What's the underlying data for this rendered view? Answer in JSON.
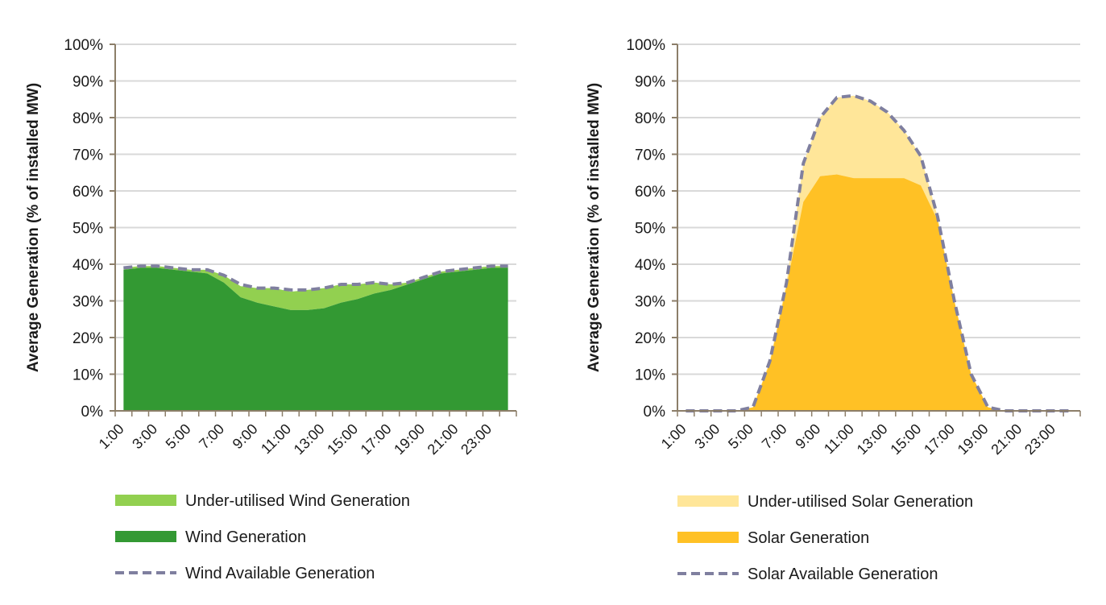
{
  "chart_data": [
    {
      "type": "area",
      "title": "",
      "xlabel": "",
      "ylabel": "Average Generation (% of installed MW)",
      "ylim": [
        0,
        100
      ],
      "ytick_labels": [
        "0%",
        "10%",
        "20%",
        "30%",
        "40%",
        "50%",
        "60%",
        "70%",
        "80%",
        "90%",
        "100%"
      ],
      "x": [
        "1:00",
        "2:00",
        "3:00",
        "4:00",
        "5:00",
        "6:00",
        "7:00",
        "8:00",
        "9:00",
        "10:00",
        "11:00",
        "12:00",
        "13:00",
        "14:00",
        "15:00",
        "16:00",
        "17:00",
        "18:00",
        "19:00",
        "20:00",
        "21:00",
        "22:00",
        "23:00",
        "24:00"
      ],
      "xtick_labels": [
        "1:00",
        "3:00",
        "5:00",
        "7:00",
        "9:00",
        "11:00",
        "13:00",
        "15:00",
        "17:00",
        "19:00",
        "21:00",
        "23:00"
      ],
      "grid": true,
      "legend_position": "bottom-left",
      "series": [
        {
          "name": "Under-utilised Wind Generation",
          "kind": "area",
          "color": "#92d050",
          "values": [
            0.5,
            0.5,
            0.5,
            0.5,
            0.5,
            1,
            2,
            3,
            4,
            5,
            5,
            5.5,
            5.5,
            5,
            4,
            3,
            1.5,
            0.5,
            0.5,
            0.5,
            0.5,
            0.5,
            0.5,
            0.5
          ]
        },
        {
          "name": "Wind Generation",
          "kind": "area",
          "color": "#339933",
          "values": [
            38.5,
            39,
            39,
            38.5,
            38,
            37.5,
            35,
            31,
            29.5,
            28.5,
            27.5,
            27.5,
            28,
            29.5,
            30.5,
            32,
            33,
            34.5,
            36,
            37.5,
            38,
            38.5,
            39,
            39
          ]
        },
        {
          "name": "Wind Available Generation",
          "kind": "line",
          "color": "#7f7f9f",
          "values": [
            39,
            39.5,
            39.5,
            39,
            38.5,
            38.5,
            37,
            34.5,
            33.5,
            33.5,
            33,
            33,
            33.5,
            34.5,
            34.5,
            35,
            34.5,
            35,
            36.5,
            38,
            38.5,
            39,
            39.5,
            39.5
          ]
        }
      ]
    },
    {
      "type": "area",
      "title": "",
      "xlabel": "",
      "ylabel": "Average Generation (% of installed MW)",
      "ylim": [
        0,
        100
      ],
      "ytick_labels": [
        "0%",
        "10%",
        "20%",
        "30%",
        "40%",
        "50%",
        "60%",
        "70%",
        "80%",
        "90%",
        "100%"
      ],
      "x": [
        "1:00",
        "2:00",
        "3:00",
        "4:00",
        "5:00",
        "6:00",
        "7:00",
        "8:00",
        "9:00",
        "10:00",
        "11:00",
        "12:00",
        "13:00",
        "14:00",
        "15:00",
        "16:00",
        "17:00",
        "18:00",
        "19:00",
        "20:00",
        "21:00",
        "22:00",
        "23:00",
        "24:00"
      ],
      "xtick_labels": [
        "1:00",
        "3:00",
        "5:00",
        "7:00",
        "9:00",
        "11:00",
        "13:00",
        "15:00",
        "17:00",
        "19:00",
        "21:00",
        "23:00"
      ],
      "grid": true,
      "legend_position": "bottom-left",
      "series": [
        {
          "name": "Under-utilised Solar Generation",
          "kind": "area",
          "color": "#ffe699",
          "values": [
            0,
            0,
            0,
            0,
            0,
            0.5,
            1,
            10.5,
            16,
            21,
            22.5,
            21,
            18,
            13,
            8,
            1,
            0,
            0,
            0,
            0,
            0,
            0,
            0,
            0
          ]
        },
        {
          "name": "Solar Generation",
          "kind": "area",
          "color": "#ffc125",
          "values": [
            0,
            0,
            0,
            0,
            1,
            13,
            34,
            57,
            64,
            64.5,
            63.5,
            63.5,
            63.5,
            63.5,
            61.5,
            52,
            30,
            10,
            1,
            0,
            0,
            0,
            0,
            0
          ]
        },
        {
          "name": "Solar Available Generation",
          "kind": "line",
          "color": "#7f7f9f",
          "values": [
            0,
            0,
            0,
            0,
            1,
            13.5,
            35,
            67.5,
            80,
            85.5,
            86,
            84.5,
            81.5,
            76.5,
            69.5,
            53,
            30,
            10,
            1,
            0,
            0,
            0,
            0,
            0
          ]
        }
      ]
    }
  ]
}
